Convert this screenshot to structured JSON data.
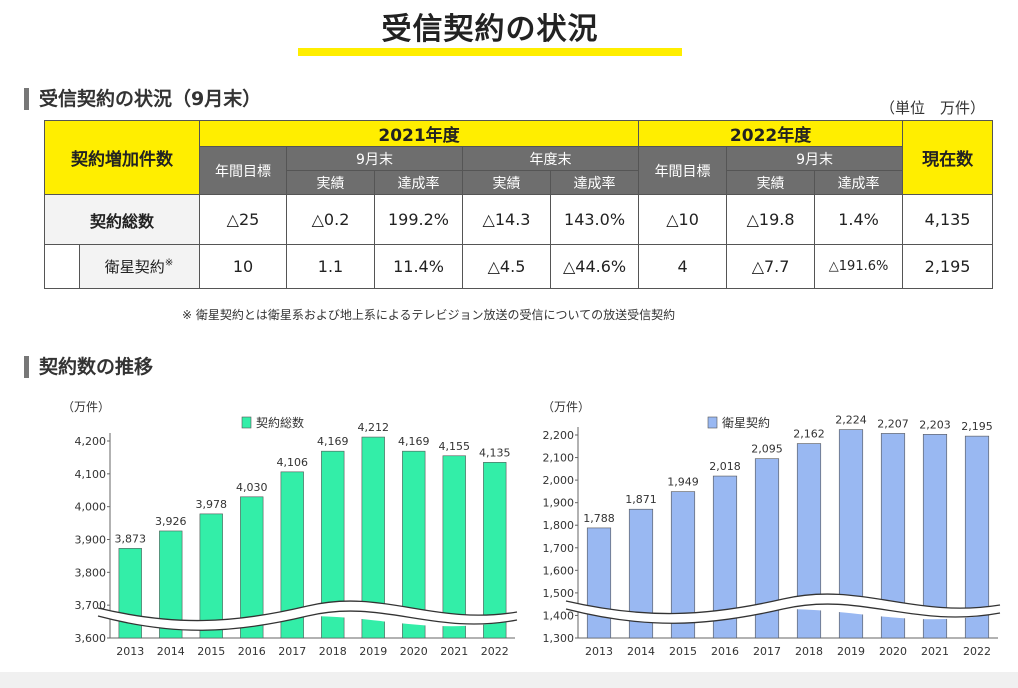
{
  "page": {
    "title": "受信契約の状況"
  },
  "table_section": {
    "heading": "受信契約の状況（9月末）",
    "unit": "（単位　万件）"
  },
  "table": {
    "corner": "契約増加件数",
    "year_2021": "2021年度",
    "year_2022": "2022年度",
    "current": "現在数",
    "annual_target": "年間目標",
    "sep_end": "9月末",
    "fy_end": "年度末",
    "actual": "実績",
    "rate": "達成率",
    "rows": [
      {
        "label": "契約総数",
        "cells": [
          "△25",
          "△0.2",
          "199.2%",
          "△14.3",
          "143.0%",
          "△10",
          "△19.8",
          "1.4%",
          "4,135"
        ]
      },
      {
        "label": "衛星契約",
        "mark": "※",
        "cells": [
          "10",
          "1.1",
          "11.4%",
          "△4.5",
          "△44.6%",
          "4",
          "△7.7",
          "△191.6%",
          "2,195"
        ]
      }
    ],
    "note": "※ 衛星契約とは衛星系および地上系によるテレビジョン放送の受信についての放送受信契約"
  },
  "trend_section": {
    "heading": "契約数の推移"
  },
  "chart_data": [
    {
      "type": "bar",
      "unit_label": "（万件）",
      "legend": "契約総数",
      "color": "#33eea8",
      "categories": [
        "2013",
        "2014",
        "2015",
        "2016",
        "2017",
        "2018",
        "2019",
        "2020",
        "2021",
        "2022"
      ],
      "values": [
        3873,
        3926,
        3978,
        4030,
        4106,
        4169,
        4212,
        4169,
        4155,
        4135
      ],
      "value_labels": [
        "3,873",
        "3,926",
        "3,978",
        "4,030",
        "4,106",
        "4,169",
        "4,212",
        "4,169",
        "4,155",
        "4,135"
      ],
      "yticks": [
        "3,600",
        "3,700",
        "3,800",
        "3,900",
        "4,000",
        "4,100",
        "4,200"
      ],
      "ylim": [
        3600,
        4200
      ],
      "axis_break": true
    },
    {
      "type": "bar",
      "unit_label": "（万件）",
      "legend": "衛星契約",
      "color": "#99b8f2",
      "categories": [
        "2013",
        "2014",
        "2015",
        "2016",
        "2017",
        "2018",
        "2019",
        "2020",
        "2021",
        "2022"
      ],
      "values": [
        1788,
        1871,
        1949,
        2018,
        2095,
        2162,
        2224,
        2207,
        2203,
        2195
      ],
      "value_labels": [
        "1,788",
        "1,871",
        "1,949",
        "2,018",
        "2,095",
        "2,162",
        "2,224",
        "2,207",
        "2,203",
        "2,195"
      ],
      "yticks": [
        "1,300",
        "1,400",
        "1,500",
        "1,600",
        "1,700",
        "1,800",
        "1,900",
        "2,000",
        "2,100",
        "2,200"
      ],
      "ylim": [
        1300,
        2200
      ],
      "axis_break": true
    }
  ]
}
